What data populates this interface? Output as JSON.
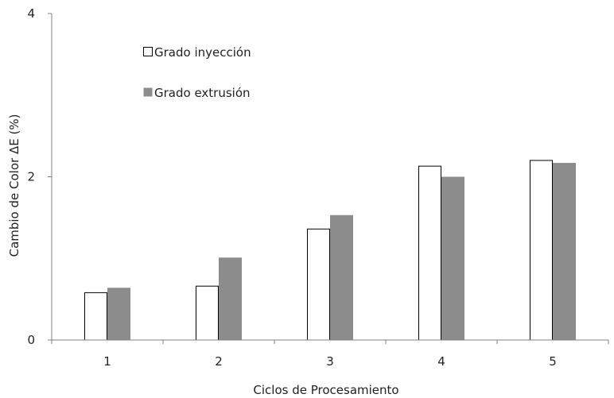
{
  "chart_data": {
    "type": "bar",
    "categories": [
      "1",
      "2",
      "3",
      "4",
      "5"
    ],
    "series": [
      {
        "name": "Grado inyección",
        "values": [
          0.58,
          0.66,
          1.36,
          2.13,
          2.2
        ],
        "color": "#ffffff",
        "stroke": "#000000"
      },
      {
        "name": "Grado extrusión",
        "values": [
          0.64,
          1.01,
          1.53,
          2.0,
          2.17
        ],
        "color": "#8c8c8c",
        "stroke": "none"
      }
    ],
    "xlabel": "Ciclos de Procesamiento",
    "ylabel": "Cambio de Color ΔE (%)",
    "ylim": [
      0,
      4
    ],
    "yticks": [
      0,
      2,
      4
    ],
    "grid": false,
    "legend_position": "top-left"
  }
}
